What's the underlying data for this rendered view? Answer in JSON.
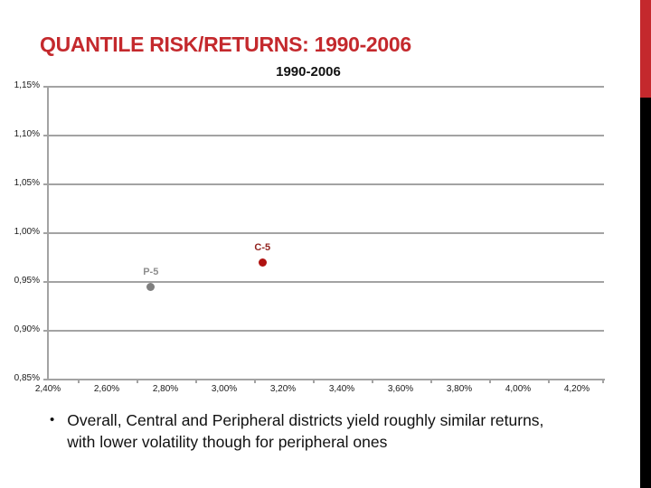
{
  "slide": {
    "title": "QUANTILE RISK/RETURNS: 1990-2006",
    "title_color": "#c4292d",
    "accent_red": "#c4292d",
    "accent_black": "#000000"
  },
  "chart_data": {
    "type": "scatter",
    "title": "1990-2006",
    "xlabel": "",
    "ylabel": "",
    "xlim": [
      2.4,
      4.2
    ],
    "ylim": [
      0.85,
      1.15
    ],
    "x_step": 0.2,
    "y_step": 0.05,
    "x_tick_labels": [
      "2,40%",
      "2,60%",
      "2,80%",
      "3,00%",
      "3,20%",
      "3,40%",
      "3,60%",
      "3,80%",
      "4,00%",
      "4,20%"
    ],
    "y_tick_labels": [
      "1,15%",
      "1,10%",
      "1,05%",
      "1,00%",
      "0,95%",
      "0,90%",
      "0,85%"
    ],
    "grid": "horizontal",
    "gridline_color": "#a3a3a3",
    "legend": "none",
    "series": [
      {
        "name": "C-5",
        "x": 3.13,
        "y": 0.97,
        "point_color": "#b01311",
        "label_color": "#92231f"
      },
      {
        "name": "P-5",
        "x": 2.75,
        "y": 0.945,
        "point_color": "#7f7f7f",
        "label_color": "#8e8e8e"
      }
    ]
  },
  "footer": {
    "bullet_text": "Overall, Central and Peripheral districts yield roughly similar returns, with lower volatility though for peripheral ones"
  }
}
